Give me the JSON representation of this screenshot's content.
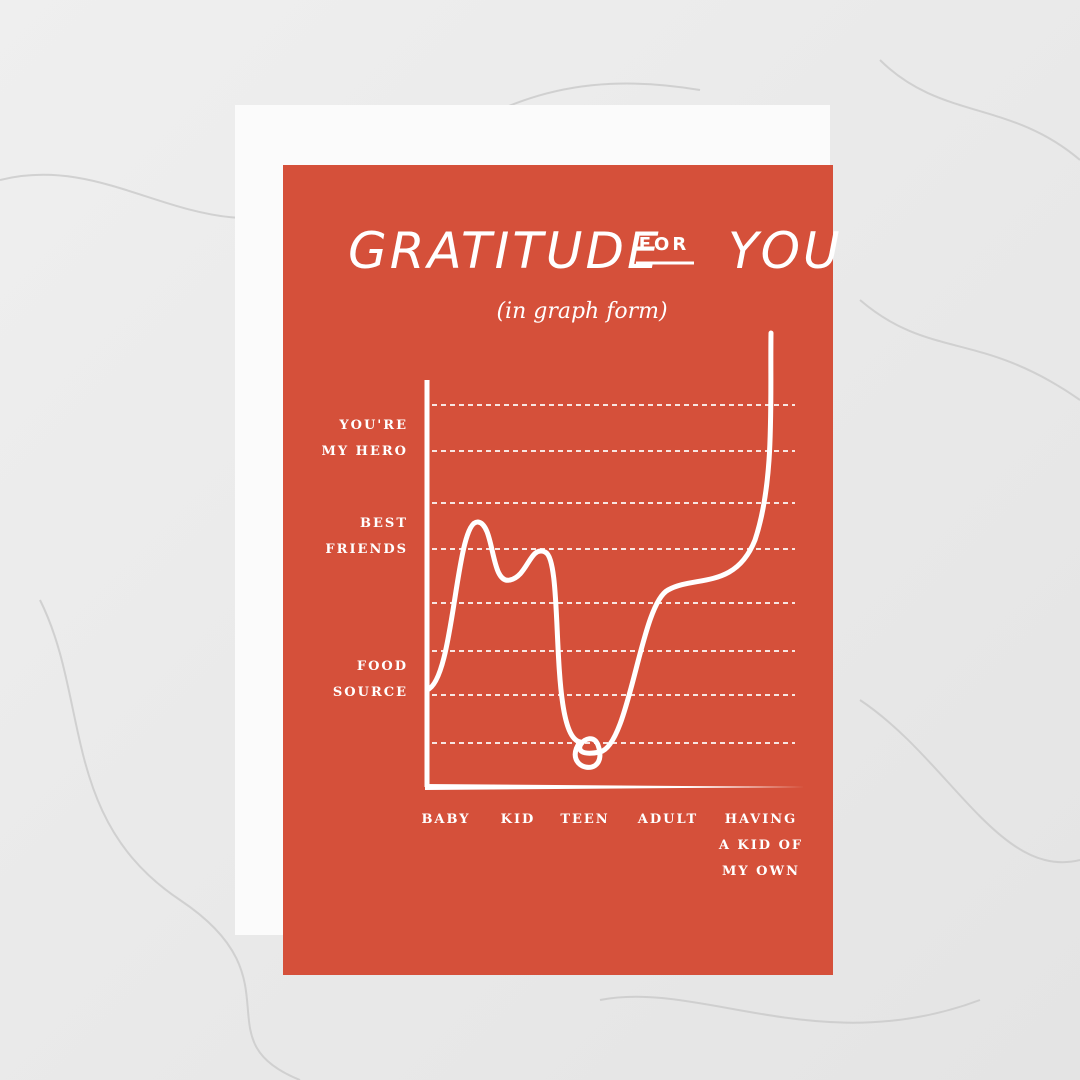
{
  "card": {
    "title": {
      "word1": "GRATITUDE",
      "word2": "FOR",
      "word3": "YOU"
    },
    "subtitle": "(in graph form)",
    "y_labels": [
      [
        "YOU'RE",
        "MY HERO"
      ],
      [
        "BEST",
        "FRIENDS"
      ],
      [
        "FOOD",
        "SOURCE"
      ]
    ],
    "x_labels": [
      [
        "BABY"
      ],
      [
        "KID"
      ],
      [
        "TEEN"
      ],
      [
        "ADULT"
      ],
      [
        "HAVING",
        "A KID OF",
        "MY OWN"
      ]
    ]
  }
}
